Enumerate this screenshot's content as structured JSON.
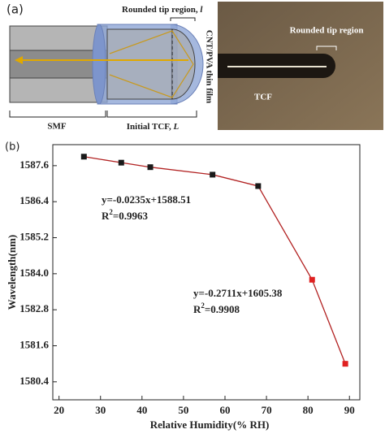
{
  "panel_a": {
    "label": "(a)",
    "tip_region": "Rounded tip region,",
    "tip_var": "l",
    "film": "CNT/PVA thin film",
    "smf": "SMF",
    "tcf_initial": "Initial TCF,",
    "tcf_var": "L",
    "photo_tip": "Rounded tip region",
    "photo_tcf": "TCF"
  },
  "chart_data": {
    "type": "scatter",
    "label": "(b)",
    "x_label": "Relative Humidity(% RH)",
    "y_label": "Wavelength(nm)",
    "xlim": [
      18.5,
      92.5
    ],
    "xticks": [
      20,
      30,
      40,
      50,
      60,
      70,
      80,
      90
    ],
    "ylim": [
      1579.8,
      1588.3
    ],
    "yticks": [
      1580.4,
      1581.6,
      1582.8,
      {
        "value": 1584,
        "label": "1584.0"
      },
      1585.2,
      1586.4,
      1587.6
    ],
    "line_color": "#b22222",
    "series": [
      {
        "color": "#1a1a1a",
        "x": [
          26,
          35,
          42,
          57,
          68
        ],
        "values": [
          1587.9,
          1587.7,
          1587.55,
          1587.3,
          1586.92
        ]
      },
      {
        "color": "#e02020",
        "x": [
          81,
          89
        ],
        "values": [
          1583.8,
          1581.0
        ]
      }
    ],
    "annotations": [
      {
        "equation": "y=-0.0235x+1588.51",
        "r_base": "R",
        "r_sup": "2",
        "r_rest": "=0.9963"
      },
      {
        "equation": "y=-0.2711x+1605.38",
        "r_base": "R",
        "r_sup": "2",
        "r_rest": "=0.9908"
      }
    ]
  }
}
